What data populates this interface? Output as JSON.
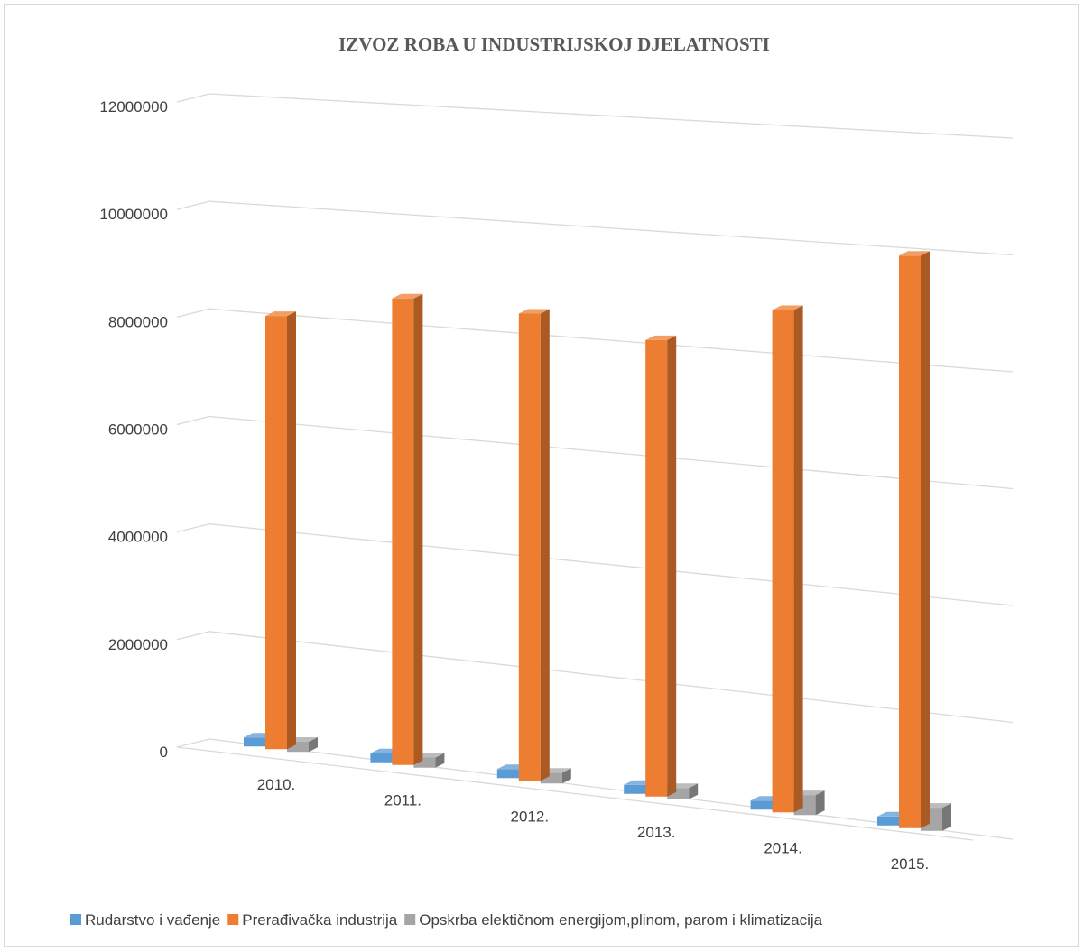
{
  "chart_data": {
    "type": "bar",
    "title": "IZVOZ ROBA U INDUSTRIJSKOJ DJELATNOSTI",
    "xlabel": "",
    "ylabel": "",
    "categories": [
      "2010.",
      "2011.",
      "2012.",
      "2013.",
      "2014.",
      "2015."
    ],
    "series": [
      {
        "name": "Rudarstvo i vađenje",
        "color": "#5B9BD5",
        "values": [
          150000,
          150000,
          150000,
          150000,
          150000,
          150000
        ]
      },
      {
        "name": "Prerađivačka industrija",
        "color": "#ED7D31",
        "values": [
          8000000,
          8500000,
          8400000,
          8100000,
          8800000,
          9900000
        ]
      },
      {
        "name": "Opskrba elektičnom energijom,plinom, parom i klimatizacija",
        "color": "#A5A5A5",
        "values": [
          50000,
          50000,
          80000,
          200000,
          350000,
          400000
        ]
      }
    ],
    "ylim": [
      0,
      12000000
    ],
    "yticks": [
      "0",
      "2000000",
      "4000000",
      "6000000",
      "8000000",
      "10000000",
      "12000000"
    ],
    "grid": true,
    "legend": "bottom",
    "three_d": true
  }
}
